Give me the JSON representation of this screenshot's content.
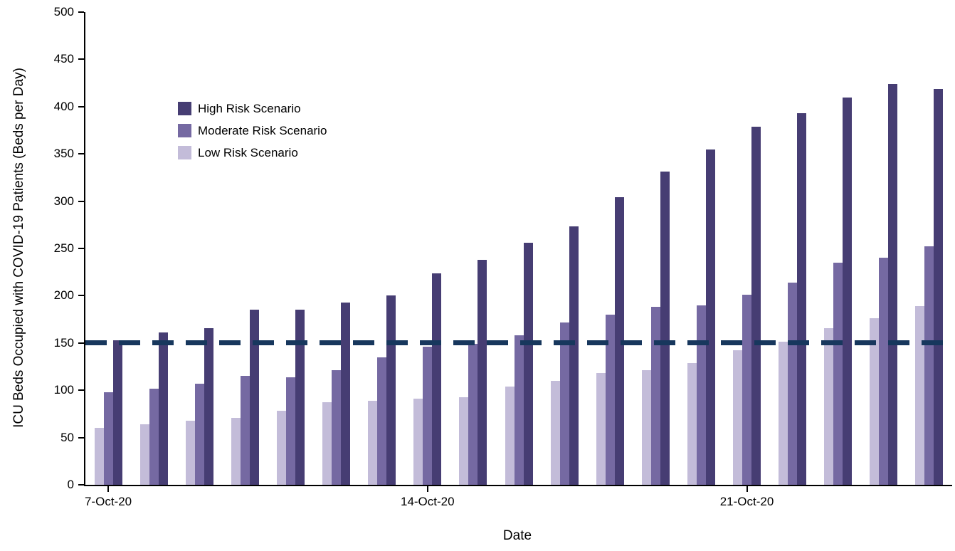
{
  "chart_data": {
    "type": "bar",
    "xlabel": "Date",
    "ylabel": "ICU Beds Occupied with COVID-19 Patients (Beds per Day)",
    "ylim": [
      0,
      500
    ],
    "ytick_step": 50,
    "grid": false,
    "legend_position": "top-left-inside",
    "categories": [
      "7-Oct-20",
      "8-Oct-20",
      "9-Oct-20",
      "10-Oct-20",
      "11-Oct-20",
      "12-Oct-20",
      "13-Oct-20",
      "14-Oct-20",
      "15-Oct-20",
      "16-Oct-20",
      "17-Oct-20",
      "18-Oct-20",
      "19-Oct-20",
      "20-Oct-20",
      "21-Oct-20",
      "22-Oct-20",
      "23-Oct-20",
      "24-Oct-20",
      "25-Oct-20"
    ],
    "x_tick_labels": [
      "7-Oct-20",
      "14-Oct-20",
      "21-Oct-20"
    ],
    "x_tick_indices": [
      0,
      7,
      14
    ],
    "series": [
      {
        "name": "High Risk Scenario",
        "color": "#463D73",
        "values": [
          153,
          161,
          166,
          185,
          185,
          193,
          200,
          224,
          238,
          256,
          273,
          304,
          331,
          355,
          379,
          393,
          410,
          424,
          419
        ]
      },
      {
        "name": "Moderate Risk Scenario",
        "color": "#7569A2",
        "values": [
          98,
          102,
          107,
          115,
          114,
          121,
          135,
          146,
          149,
          158,
          172,
          180,
          188,
          190,
          201,
          214,
          235,
          240,
          252
        ]
      },
      {
        "name": "Low Risk Scenario",
        "color": "#C3BCD9",
        "values": [
          60,
          64,
          68,
          71,
          78,
          87,
          89,
          91,
          93,
          104,
          110,
          118,
          121,
          129,
          142,
          151,
          166,
          176,
          189
        ]
      }
    ],
    "reference_line": {
      "value": 150,
      "color": "#17375D",
      "style": "dashed"
    },
    "axis_color": "#000000",
    "background_color": "#FFFFFF"
  }
}
